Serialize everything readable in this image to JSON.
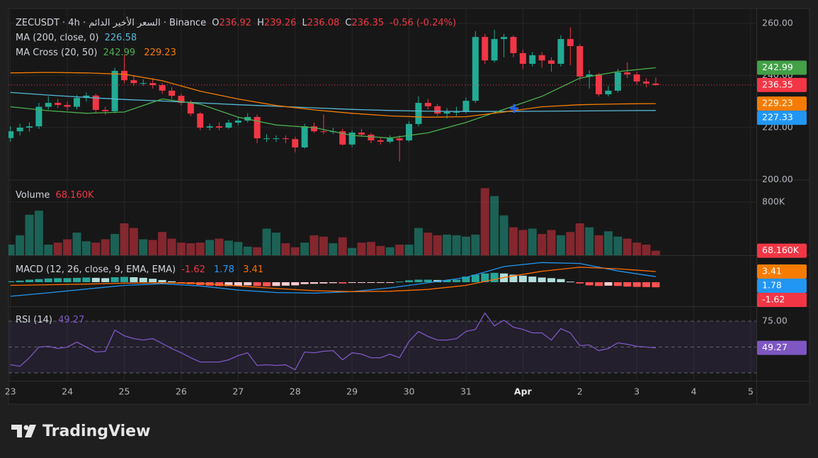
{
  "chart_data": [
    {
      "type": "candlestick",
      "title": "ZECUSDT · 4h · السعر الأخير الدائم · Binance",
      "ohlc_labels": [
        {
          "label": "O",
          "value": 236.92
        },
        {
          "label": "H",
          "value": 239.26
        },
        {
          "label": "L",
          "value": 236.08
        },
        {
          "label": "C",
          "value": 236.35
        }
      ],
      "change": "-0.56 (-0.24%)",
      "up_color": "#22ab94",
      "down_color": "#f23645",
      "open": [
        216,
        218.6,
        220,
        220.5,
        228,
        229.5,
        228.7,
        228,
        231.4,
        232.3,
        226.8,
        226.3,
        241.8,
        238.2,
        237.1,
        237.1,
        236.3,
        234.2,
        232.2,
        229.5,
        225.4,
        220,
        220.5,
        220,
        221.9,
        222.7,
        224.1,
        215.9,
        215.9,
        215.9,
        215.6,
        212.4,
        220.5,
        218.6,
        218.4,
        218.6,
        213.5,
        218.1,
        217.3,
        215.1,
        214.6,
        215.9,
        215.1,
        221.4,
        229.5,
        228.2,
        225.4,
        226,
        226,
        230.3,
        254.8,
        245.8,
        254,
        254.8,
        248.6,
        244.5,
        247.8,
        245.8,
        244.5,
        254,
        251.3,
        239.6,
        240.4,
        232.8,
        234.2,
        241.2,
        240.4,
        237.7,
        236.92
      ],
      "high": [
        220.5,
        221.5,
        222,
        229.5,
        232,
        231,
        230,
        232.5,
        233.5,
        233,
        228,
        243,
        248,
        240,
        238.5,
        239,
        237,
        235.5,
        233,
        230.5,
        226,
        221.5,
        222,
        223,
        224,
        225.5,
        225,
        217.5,
        217,
        217,
        216.5,
        221.5,
        222,
        225,
        220,
        219.5,
        219,
        219.5,
        218,
        216,
        217,
        217,
        222.5,
        232,
        231,
        229,
        227.5,
        228,
        231.5,
        257,
        256,
        257.5,
        256,
        255.5,
        250,
        249,
        249,
        247,
        255.5,
        258.5,
        252,
        242,
        241,
        236,
        242.5,
        245,
        241.5,
        239,
        239.26
      ],
      "low": [
        214.5,
        217,
        218.5,
        219.5,
        227,
        227.5,
        226.5,
        227,
        230,
        225.5,
        225,
        225.5,
        237,
        236,
        236,
        235,
        233,
        231,
        228.5,
        224.5,
        219,
        219,
        219,
        219.5,
        221,
        222,
        214,
        214.5,
        214.5,
        214,
        210.5,
        212,
        218,
        217.5,
        217.5,
        213,
        212.5,
        216.5,
        214,
        213.5,
        214,
        207,
        214.5,
        220.5,
        227,
        224.5,
        223.5,
        224.5,
        225.5,
        229.5,
        244.5,
        245,
        247,
        247,
        242.5,
        243.5,
        243,
        241.5,
        243.5,
        244,
        238,
        235,
        232,
        232,
        233.5,
        239,
        236.5,
        235.5,
        236.08
      ],
      "close": [
        218.6,
        220,
        220.5,
        228,
        229.5,
        228.7,
        228,
        231.4,
        232.3,
        226.8,
        226.3,
        241.8,
        238.2,
        237.1,
        237.1,
        236.3,
        234.2,
        232.2,
        229.5,
        225.4,
        220,
        220.5,
        220,
        221.9,
        222.7,
        224.1,
        215.9,
        215.9,
        215.9,
        215.6,
        212.4,
        220.5,
        218.6,
        218.4,
        218.6,
        213.5,
        218.1,
        217.3,
        215.1,
        214.6,
        215.9,
        215.1,
        221.4,
        229.5,
        228.2,
        225.4,
        226,
        226,
        230.3,
        254.8,
        245.8,
        254,
        254.8,
        248.6,
        244.5,
        247.8,
        245.8,
        244.5,
        254,
        251.3,
        239.6,
        240.4,
        232.8,
        234.2,
        241.2,
        240.4,
        237.7,
        236.92,
        236.35
      ],
      "xlim": [
        -0.2,
        78.6
      ],
      "xticks": [
        {
          "value": 0,
          "label": "23"
        },
        {
          "value": 6,
          "label": "24"
        },
        {
          "value": 12,
          "label": "25"
        },
        {
          "value": 18,
          "label": "26"
        },
        {
          "value": 24,
          "label": "27"
        },
        {
          "value": 30,
          "label": "28"
        },
        {
          "value": 36,
          "label": "29"
        },
        {
          "value": 42,
          "label": "30"
        },
        {
          "value": 48,
          "label": "31"
        },
        {
          "value": 54,
          "label": "Apr"
        },
        {
          "value": 60,
          "label": "2"
        },
        {
          "value": 66,
          "label": "3"
        },
        {
          "value": 72,
          "label": "4"
        },
        {
          "value": 78,
          "label": "5"
        }
      ],
      "ylim": [
        200.14,
        265.45
      ],
      "yticks": [
        {
          "value": 200,
          "label": "200.00"
        },
        {
          "value": 220,
          "label": "220.00"
        },
        {
          "value": 240,
          "label": "240.00"
        },
        {
          "value": 260,
          "label": "260.00"
        }
      ],
      "grid": true,
      "studies": [
        {
          "name": "MA (200, close, 0)",
          "series": [
            {
              "color": "#58b9d8",
              "last": 226.58,
              "x": [
                0,
                4,
                8,
                12,
                16,
                20,
                24,
                28,
                32,
                36,
                40,
                44,
                48,
                52,
                56,
                60,
                64,
                68
              ],
              "values": [
                233.5,
                232.5,
                231.6,
                230.8,
                230.2,
                229.5,
                228.8,
                228.2,
                227.6,
                227.0,
                226.6,
                226.3,
                226.2,
                226.2,
                226.3,
                226.4,
                226.5,
                226.58
              ]
            }
          ]
        },
        {
          "name": "MA Cross (20, 50)",
          "series": [
            {
              "color": "#4caf50",
              "last": 242.99,
              "x": [
                0,
                4,
                8,
                12,
                16,
                20,
                24,
                28,
                32,
                36,
                40,
                44,
                48,
                52,
                56,
                60,
                64,
                68
              ],
              "values": [
                228,
                226.5,
                225.5,
                226,
                231,
                229,
                224,
                221,
                220,
                217,
                216,
                218,
                222,
                227,
                232,
                239,
                241.5,
                242.99
              ]
            },
            {
              "color": "#f57c00",
              "last": 229.23,
              "x": [
                0,
                4,
                8,
                12,
                16,
                20,
                24,
                28,
                32,
                36,
                40,
                44,
                48,
                52,
                56,
                60,
                64,
                68
              ],
              "values": [
                241,
                241.2,
                241,
                240.5,
                238,
                234,
                231,
                228.5,
                226.8,
                225.5,
                224.5,
                224,
                224.2,
                226,
                228,
                228.8,
                229.1,
                229.23
              ]
            }
          ]
        }
      ],
      "price_labels": [
        {
          "value": 242.99,
          "color": "#43a047"
        },
        {
          "value": 236.35,
          "color": "#f23645"
        },
        {
          "value": 229.23,
          "color": "#f57c00"
        },
        {
          "value": 227.33,
          "color": "#2196f3"
        }
      ]
    },
    {
      "type": "volume",
      "title": "Volume",
      "legend_value": {
        "value": 68160,
        "label": "68.160K"
      },
      "values": [
        160000,
        300000,
        610000,
        670000,
        160000,
        190000,
        240000,
        340000,
        210000,
        190000,
        240000,
        320000,
        480000,
        410000,
        240000,
        230000,
        350000,
        250000,
        190000,
        180000,
        190000,
        230000,
        250000,
        220000,
        200000,
        130000,
        120000,
        400000,
        340000,
        180000,
        120000,
        190000,
        300000,
        280000,
        180000,
        270000,
        110000,
        190000,
        200000,
        140000,
        120000,
        160000,
        160000,
        410000,
        340000,
        300000,
        310000,
        300000,
        280000,
        310000,
        1010000,
        890000,
        600000,
        420000,
        380000,
        400000,
        320000,
        380000,
        300000,
        350000,
        480000,
        420000,
        300000,
        360000,
        280000,
        250000,
        190000,
        160000,
        68160
      ],
      "ylim": [
        0,
        1120000
      ],
      "yticks": [
        {
          "value": 800000,
          "label": "800K"
        }
      ],
      "price_labels": [
        {
          "value": 68160,
          "label": "68.160K",
          "color": "#f23645"
        }
      ]
    },
    {
      "type": "macd",
      "title": "MACD (12, 26, close, 9, EMA, EMA)",
      "histogram": {
        "last": -1.62,
        "colors": {
          "grow_above": "#26a69a",
          "fall_above": "#b2dfdb",
          "grow_below": "#ff5252",
          "fall_below": "#ffcdd2"
        },
        "values": [
          0.3,
          0.5,
          0.8,
          1.0,
          1.2,
          1.3,
          1.3,
          1.4,
          1.5,
          1.4,
          1.3,
          1.6,
          1.7,
          1.6,
          1.4,
          1.1,
          0.7,
          0.3,
          -0.2,
          -0.6,
          -0.9,
          -1.1,
          -1.2,
          -1.2,
          -1.1,
          -1.0,
          -1.2,
          -1.3,
          -1.2,
          -1.1,
          -1.0,
          -0.6,
          -0.5,
          -0.4,
          -0.3,
          -0.4,
          -0.2,
          -0.2,
          -0.2,
          -0.2,
          -0.1,
          0.2,
          0.6,
          0.8,
          0.8,
          0.7,
          0.7,
          0.8,
          1.8,
          2.4,
          2.8,
          3.0,
          2.8,
          2.4,
          2.1,
          1.8,
          1.5,
          1.3,
          1.0,
          0.2,
          -0.4,
          -1.0,
          -1.2,
          -1.1,
          -1.2,
          -1.4,
          -1.5,
          -1.55,
          -1.62
        ]
      },
      "series": [
        {
          "color": "#2196f3",
          "last": 1.78,
          "x": [
            0,
            4,
            8,
            12,
            16,
            20,
            24,
            28,
            32,
            36,
            40,
            44,
            48,
            52,
            56,
            60,
            64,
            68
          ],
          "values": [
            -4.5,
            -3.4,
            -2.2,
            -1.0,
            -0.5,
            -1.2,
            -2.5,
            -3.3,
            -3.5,
            -3.0,
            -1.8,
            -0.2,
            1.5,
            5.0,
            6.3,
            6.0,
            3.6,
            1.78
          ]
        },
        {
          "color": "#ff6d00",
          "last": 3.41,
          "x": [
            0,
            4,
            8,
            12,
            16,
            20,
            24,
            28,
            32,
            36,
            40,
            44,
            48,
            52,
            56,
            60,
            64,
            68
          ],
          "values": [
            -1.0,
            -0.8,
            -0.6,
            -0.3,
            -0.2,
            -0.4,
            -1.2,
            -2.0,
            -2.7,
            -3.0,
            -2.9,
            -2.3,
            -1.0,
            1.5,
            3.5,
            4.8,
            4.3,
            3.41
          ]
        }
      ],
      "ylim": [
        -7.7,
        8.4
      ],
      "price_labels": [
        {
          "value": 3.41,
          "color": "#f57c00"
        },
        {
          "value": 1.78,
          "color": "#2196f3"
        },
        {
          "value": -1.62,
          "color": "#f23645"
        }
      ]
    },
    {
      "type": "rsi",
      "title": "RSI (14)",
      "color": "#7e57c2",
      "last": 49.27,
      "values": [
        33,
        31.5,
        39.7,
        50,
        50.7,
        48.6,
        50,
        54.8,
        50,
        45.2,
        45.9,
        66.4,
        60.9,
        58.2,
        56.8,
        58.2,
        53.4,
        48.6,
        44.5,
        39.7,
        35.6,
        35.6,
        35.6,
        37.7,
        41.8,
        44.5,
        32.2,
        32.9,
        32.2,
        32.9,
        28.1,
        45.2,
        44.5,
        45.9,
        46.6,
        37.7,
        44.5,
        43.2,
        39.7,
        39.7,
        43.2,
        39.7,
        55.5,
        65.1,
        60.3,
        56.8,
        56.8,
        58.2,
        65.1,
        67.1,
        82.9,
        70.5,
        76,
        69.2,
        67.1,
        63.7,
        63.7,
        56.8,
        67.8,
        63.7,
        51.4,
        52.1,
        46.6,
        48.6,
        54.1,
        52.7,
        50.7,
        50,
        49.27
      ],
      "ylim": [
        17.5,
        88.7
      ],
      "yticks": [
        {
          "value": 75,
          "label": "75.00"
        }
      ],
      "levels": [
        75,
        50,
        25
      ],
      "price_labels": [
        {
          "value": 49.27,
          "color": "#7e57c2"
        }
      ]
    }
  ],
  "branding": "TradingView"
}
